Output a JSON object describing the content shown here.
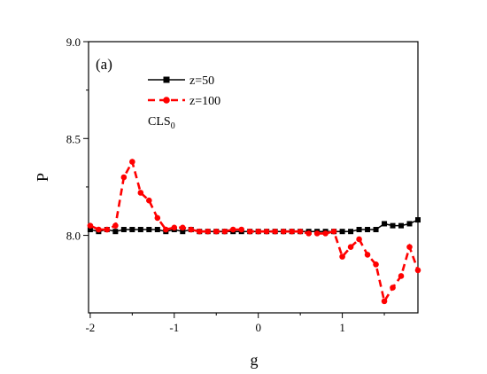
{
  "chart_data": {
    "type": "line",
    "panel_label": "(a)",
    "xlabel": "g",
    "ylabel": "P",
    "xlim": [
      -2.02,
      1.9
    ],
    "ylim": [
      7.6,
      9.0
    ],
    "xticks": [
      -2,
      -1,
      0,
      1
    ],
    "yticks": [
      8.0,
      8.5,
      9.0
    ],
    "xtick_labels": [
      "-2",
      "-1",
      "0",
      "1"
    ],
    "ytick_labels": [
      "8.0",
      "8.5",
      "9.0"
    ],
    "grid": false,
    "legend_position": "top-left",
    "annotation": {
      "main": "CLS",
      "sub": "0"
    },
    "series": [
      {
        "name": "z=50",
        "color": "#000000",
        "marker": "square",
        "line": "solid",
        "x": [
          -2.0,
          -1.9,
          -1.8,
          -1.7,
          -1.6,
          -1.5,
          -1.4,
          -1.3,
          -1.2,
          -1.1,
          -1.0,
          -0.9,
          -0.8,
          -0.7,
          -0.6,
          -0.5,
          -0.4,
          -0.3,
          -0.2,
          -0.1,
          0.0,
          0.1,
          0.2,
          0.3,
          0.4,
          0.5,
          0.6,
          0.7,
          0.8,
          0.9,
          1.0,
          1.1,
          1.2,
          1.3,
          1.4,
          1.5,
          1.6,
          1.7,
          1.8,
          1.9
        ],
        "y": [
          8.03,
          8.02,
          8.03,
          8.02,
          8.03,
          8.03,
          8.03,
          8.03,
          8.03,
          8.02,
          8.03,
          8.02,
          8.03,
          8.02,
          8.02,
          8.02,
          8.02,
          8.02,
          8.02,
          8.02,
          8.02,
          8.02,
          8.02,
          8.02,
          8.02,
          8.02,
          8.02,
          8.02,
          8.02,
          8.02,
          8.02,
          8.02,
          8.03,
          8.03,
          8.03,
          8.06,
          8.05,
          8.05,
          8.06,
          8.08
        ]
      },
      {
        "name": "z=100",
        "color": "#ff0000",
        "marker": "circle",
        "line": "dashed",
        "x": [
          -2.0,
          -1.9,
          -1.8,
          -1.7,
          -1.6,
          -1.5,
          -1.4,
          -1.3,
          -1.2,
          -1.1,
          -1.0,
          -0.9,
          -0.8,
          -0.7,
          -0.6,
          -0.5,
          -0.4,
          -0.3,
          -0.2,
          -0.1,
          0.0,
          0.1,
          0.2,
          0.3,
          0.4,
          0.5,
          0.6,
          0.7,
          0.8,
          0.9,
          1.0,
          1.1,
          1.2,
          1.3,
          1.4,
          1.5,
          1.6,
          1.7,
          1.8,
          1.9
        ],
        "y": [
          8.05,
          8.03,
          8.03,
          8.05,
          8.3,
          8.38,
          8.22,
          8.18,
          8.09,
          8.03,
          8.04,
          8.04,
          8.03,
          8.02,
          8.02,
          8.02,
          8.02,
          8.03,
          8.03,
          8.02,
          8.02,
          8.02,
          8.02,
          8.02,
          8.02,
          8.02,
          8.01,
          8.01,
          8.01,
          8.02,
          7.89,
          7.94,
          7.98,
          7.9,
          7.85,
          7.66,
          7.73,
          7.79,
          7.94,
          7.82
        ]
      }
    ]
  }
}
